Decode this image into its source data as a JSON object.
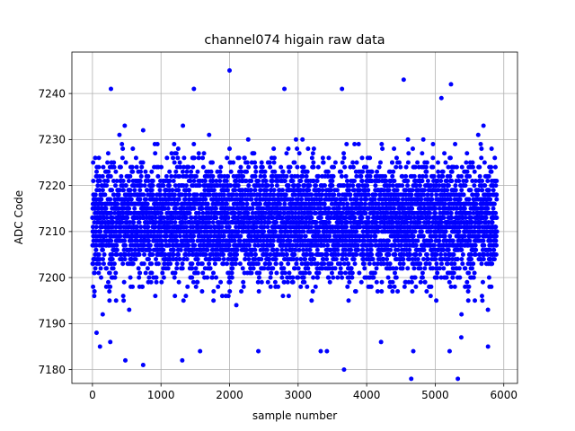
{
  "chart_data": {
    "type": "scatter",
    "title": "channel074 higain raw data",
    "xlabel": "sample number",
    "ylabel": "ADC Code",
    "xlim": [
      -300,
      6200
    ],
    "ylim": [
      7177,
      7249
    ],
    "xticks": [
      0,
      1000,
      2000,
      3000,
      4000,
      5000,
      6000
    ],
    "yticks": [
      7180,
      7190,
      7200,
      7210,
      7220,
      7230,
      7240
    ],
    "grid": true,
    "marker_color": "#0000ff",
    "n_points": 5900,
    "main_band": [
      7195,
      7230
    ],
    "outliers": [
      {
        "x": 2000,
        "y": 7245
      },
      {
        "x": 4540,
        "y": 7243
      },
      {
        "x": 5230,
        "y": 7242
      },
      {
        "x": 270,
        "y": 7241
      },
      {
        "x": 1480,
        "y": 7241
      },
      {
        "x": 2800,
        "y": 7241
      },
      {
        "x": 3640,
        "y": 7241
      },
      {
        "x": 5090,
        "y": 7239
      },
      {
        "x": 480,
        "y": 7182
      },
      {
        "x": 740,
        "y": 7181
      },
      {
        "x": 1310,
        "y": 7182
      },
      {
        "x": 1570,
        "y": 7184
      },
      {
        "x": 2420,
        "y": 7184
      },
      {
        "x": 3330,
        "y": 7184
      },
      {
        "x": 3420,
        "y": 7184
      },
      {
        "x": 3670,
        "y": 7180
      },
      {
        "x": 4210,
        "y": 7186
      },
      {
        "x": 4650,
        "y": 7178
      },
      {
        "x": 4680,
        "y": 7184
      },
      {
        "x": 5210,
        "y": 7184
      },
      {
        "x": 5330,
        "y": 7178
      },
      {
        "x": 5380,
        "y": 7187
      },
      {
        "x": 5770,
        "y": 7185
      },
      {
        "x": 110,
        "y": 7185
      },
      {
        "x": 60,
        "y": 7188
      },
      {
        "x": 260,
        "y": 7186
      }
    ]
  }
}
